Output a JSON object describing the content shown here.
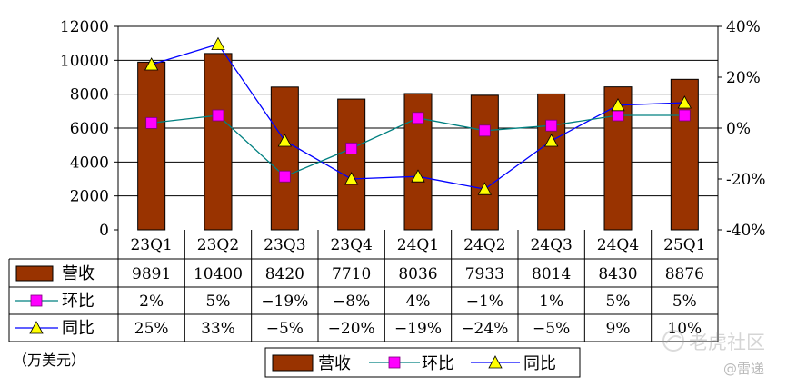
{
  "chart_data": {
    "type": "bar+line",
    "categories": [
      "23Q1",
      "23Q2",
      "23Q3",
      "23Q4",
      "24Q1",
      "24Q2",
      "24Q3",
      "24Q4",
      "25Q1"
    ],
    "series": [
      {
        "name": "营收",
        "kind": "bar",
        "axis": "left",
        "color": "#993300",
        "values": [
          9891,
          10400,
          8420,
          7710,
          8036,
          7933,
          8014,
          8430,
          8876
        ],
        "labels": [
          "9891",
          "10400",
          "8420",
          "7710",
          "8036",
          "7933",
          "8014",
          "8430",
          "8876"
        ]
      },
      {
        "name": "环比",
        "kind": "line",
        "axis": "right",
        "color": "#008080",
        "marker": "square",
        "marker_color": "#ff00ff",
        "values": [
          2,
          5,
          -19,
          -8,
          4,
          -1,
          1,
          5,
          5
        ],
        "labels": [
          "2%",
          "5%",
          "-19%",
          "-8%",
          "4%",
          "-1%",
          "1%",
          "5%",
          "5%"
        ]
      },
      {
        "name": "同比",
        "kind": "line",
        "axis": "right",
        "color": "#0000ff",
        "marker": "triangle",
        "marker_color": "#ffff00",
        "values": [
          25,
          33,
          -5,
          -20,
          -19,
          -24,
          -5,
          9,
          10
        ],
        "labels": [
          "25%",
          "33%",
          "-5%",
          "-20%",
          "-19%",
          "-24%",
          "-5%",
          "9%",
          "10%"
        ]
      }
    ],
    "y_left": {
      "min": 0,
      "max": 12000,
      "step": 2000,
      "tick_labels": [
        "0",
        "2000",
        "4000",
        "6000",
        "8000",
        "10000",
        "12000"
      ]
    },
    "y_right": {
      "min": -40,
      "max": 40,
      "step": 20,
      "tick_labels": [
        "-40%",
        "-20%",
        "0%",
        "20%",
        "40%"
      ]
    },
    "unit_label": "（万美元）",
    "legend": [
      "营收",
      "环比",
      "同比"
    ],
    "legend_position": "bottom",
    "grid": true
  },
  "watermarks": {
    "tiger": "老虎社区",
    "leiti": "@雷递"
  }
}
